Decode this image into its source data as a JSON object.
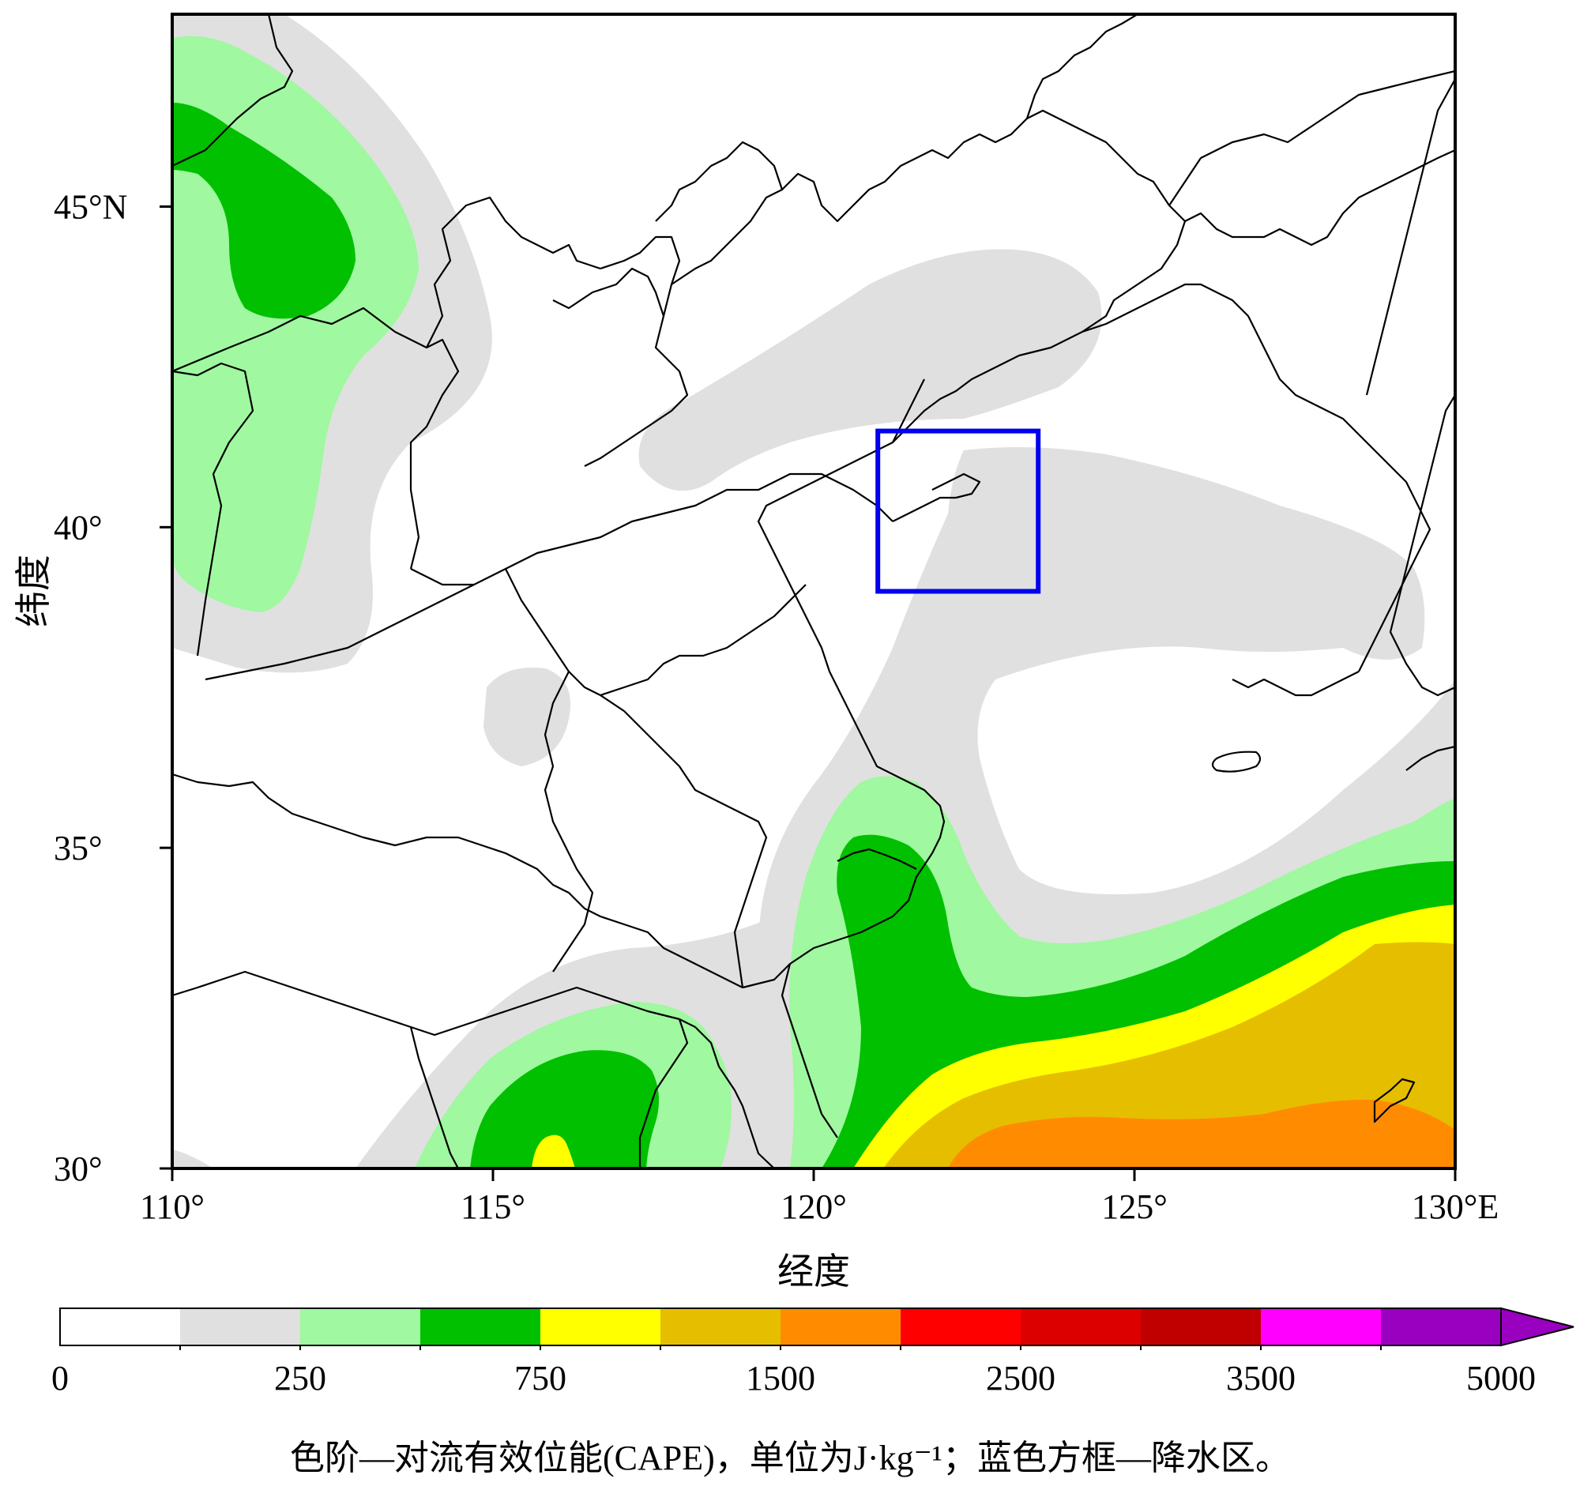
{
  "map": {
    "x_axis": {
      "title": "经度",
      "ticks": [
        {
          "value": 110,
          "label": "110°"
        },
        {
          "value": 115,
          "label": "115°"
        },
        {
          "value": 120,
          "label": "120°"
        },
        {
          "value": 125,
          "label": "125°"
        },
        {
          "value": 130,
          "label": "130°E"
        }
      ],
      "range": [
        110,
        130
      ]
    },
    "y_axis": {
      "title": "纬度",
      "ticks": [
        {
          "value": 30,
          "label": "30°"
        },
        {
          "value": 35,
          "label": "35°"
        },
        {
          "value": 40,
          "label": "40°"
        },
        {
          "value": 45,
          "label": "45°N"
        }
      ],
      "range": [
        30,
        48
      ]
    },
    "precip_box": {
      "lon": [
        121,
        123.5
      ],
      "lat": [
        39,
        41.5
      ],
      "color": "#0000ee"
    },
    "fill_colors": {
      "lt125": "#ffffff",
      "125_250": "#e0e0e0",
      "250_500": "#a0f8a0",
      "500_750": "#00c000",
      "750_1000": "#ffff00",
      "1000_1500": "#e6be00",
      "1500_2000": "#ff8c00"
    }
  },
  "colorbar": {
    "segments": [
      "#ffffff",
      "#e0e0e0",
      "#a0f8a0",
      "#00c000",
      "#ffff00",
      "#e6be00",
      "#ff8c00",
      "#ff0000",
      "#dd0000",
      "#c00000",
      "#ff00ff",
      "#9900c0"
    ],
    "extend_color": "#9900c0",
    "labels": [
      {
        "index": 0,
        "label": "0"
      },
      {
        "index": 2,
        "label": "250"
      },
      {
        "index": 4,
        "label": "750"
      },
      {
        "index": 6,
        "label": "1500"
      },
      {
        "index": 8,
        "label": "2500"
      },
      {
        "index": 10,
        "label": "3500"
      },
      {
        "index": 12,
        "label": "5000"
      }
    ]
  },
  "caption": "色阶—对流有效位能(CAPE)，单位为J·kg⁻¹；蓝色方框—降水区。"
}
